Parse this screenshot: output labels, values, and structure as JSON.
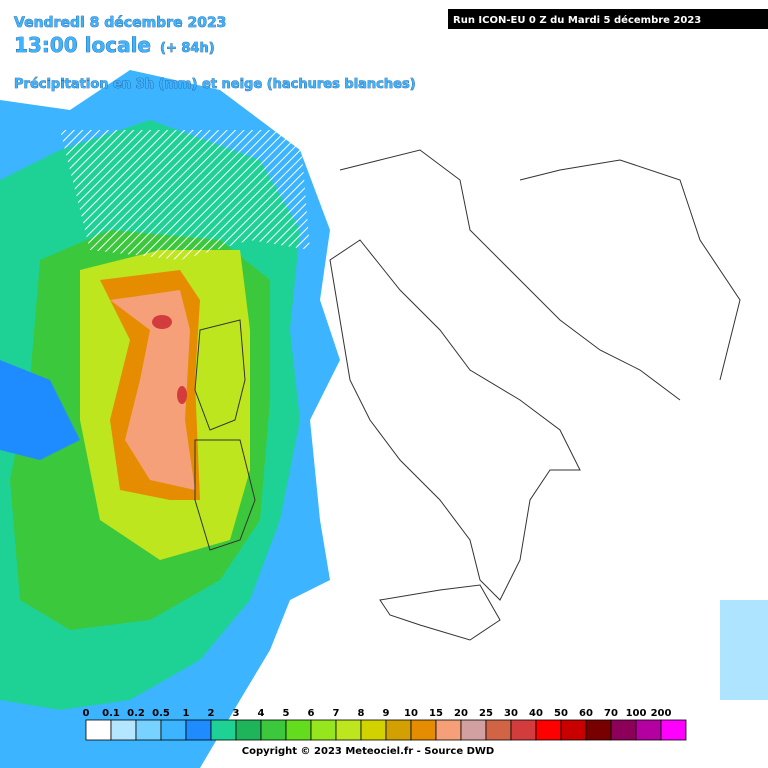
{
  "header": {
    "date": "Vendredi 8 décembre 2023",
    "time": "13:00 locale",
    "lead": "(+ 84h)",
    "subtitle": "Précipitation en 3h (mm) et neige (hachures blanches)",
    "run": "Run ICON-EU 0 Z du Mardi 5 décembre 2023"
  },
  "legend": {
    "labels": [
      0,
      0.1,
      0.2,
      0.5,
      1,
      2,
      3,
      4,
      5,
      6,
      7,
      8,
      9,
      10,
      15,
      20,
      25,
      30,
      40,
      50,
      60,
      70,
      100,
      200
    ],
    "colors": [
      "#ffffff",
      "#b4e6ff",
      "#78d2ff",
      "#3cb4ff",
      "#1e8cff",
      "#1ed296",
      "#1eb45a",
      "#3cc83c",
      "#64dc1e",
      "#96e61e",
      "#bee61e",
      "#d2d200",
      "#d2a000",
      "#e68c00",
      "#f5a078",
      "#d2a0a0",
      "#d26446",
      "#d23c3c",
      "#ff0000",
      "#c80000",
      "#780000",
      "#8c005a",
      "#b400a0",
      "#ff00ff"
    ]
  },
  "footer": {
    "copyright": "Copyright © 2023 Meteociel.fr - Source DWD"
  }
}
